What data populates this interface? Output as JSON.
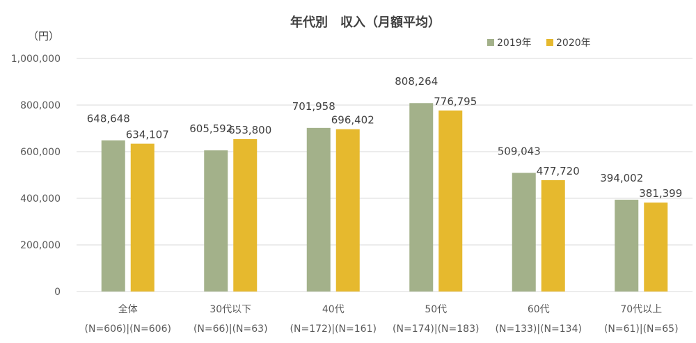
{
  "chart_data": {
    "type": "bar",
    "title": "年代別　収入（月額平均）",
    "ylabel": "（円）",
    "ylim": [
      0,
      1000000
    ],
    "yticks": [
      0,
      200000,
      400000,
      600000,
      800000,
      1000000
    ],
    "ytick_labels": [
      "0",
      "200,000",
      "400,000",
      "600,000",
      "800,000",
      "1,000,000"
    ],
    "grid": true,
    "legend_position": "top-right",
    "categories": [
      "全体",
      "30代以下",
      "40代",
      "50代",
      "60代",
      "70代以上"
    ],
    "category_sublabels": [
      "(N=606)|(N=606)",
      "(N=66)|(N=63)",
      "(N=172)|(N=161)",
      "(N=174)|(N=183)",
      "(N=133)|(N=134)",
      "(N=61)|(N=65)"
    ],
    "series": [
      {
        "name": "2019年",
        "color": "#a3b18a",
        "values": [
          648648,
          605592,
          701958,
          808264,
          509043,
          394002
        ],
        "labels": [
          "648,648",
          "605,592",
          "701,958",
          "808,264",
          "509,043",
          "394,002"
        ]
      },
      {
        "name": "2020年",
        "color": "#e6b92e",
        "values": [
          634107,
          653800,
          696402,
          776795,
          477720,
          381399
        ],
        "labels": [
          "634,107",
          "653,800",
          "696,402",
          "776,795",
          "477,720",
          "381,399"
        ]
      }
    ]
  }
}
